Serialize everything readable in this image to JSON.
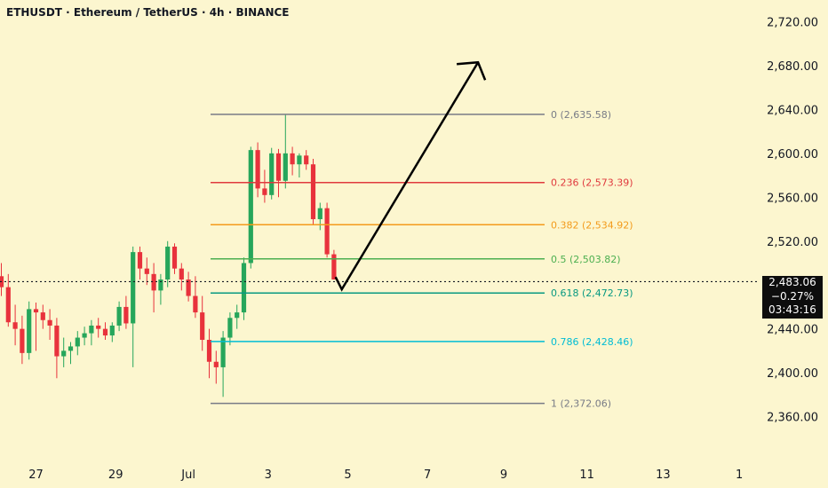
{
  "header": {
    "title": "ETHUSDT · Ethereum / TetherUS · 4h · BINANCE"
  },
  "price_badge": {
    "price": "2,483.06",
    "change": "−0.27%",
    "countdown": "03:43:16"
  },
  "colors": {
    "background": "#fcf6cf",
    "up": "#26a65b",
    "down": "#e8323c",
    "text": "#131722",
    "arrow": "#000000"
  },
  "chart_data": {
    "type": "candlestick",
    "title": "ETHUSDT · Ethereum / TetherUS · 4h · BINANCE",
    "ylim": [
      2350,
      2735
    ],
    "y_ticks": [
      "2,360.00",
      "2,400.00",
      "2,440.00",
      "2,480.00",
      "2,520.00",
      "2,560.00",
      "2,600.00",
      "2,640.00",
      "2,680.00",
      "2,720.00"
    ],
    "y_tick_values": [
      2360,
      2400,
      2440,
      2480,
      2520,
      2560,
      2600,
      2640,
      2680,
      2720
    ],
    "x_tick_labels": [
      "27",
      "29",
      "Jul",
      "3",
      "5",
      "7",
      "9",
      "11",
      "13",
      "1"
    ],
    "x_tick_indices": [
      5,
      16.5,
      27,
      38.5,
      50,
      61.5,
      72.5,
      84.5,
      95.5,
      106.5
    ],
    "last_price": 2483.06,
    "fibonacci": [
      {
        "label": "0 (2,635.58)",
        "value": 2635.58,
        "color": "#787b86"
      },
      {
        "label": "0.236 (2,573.39)",
        "value": 2573.39,
        "color": "#e03a3e"
      },
      {
        "label": "0.382 (2,534.92)",
        "value": 2534.92,
        "color": "#f39b1b"
      },
      {
        "label": "0.5 (2,503.82)",
        "value": 2503.82,
        "color": "#4caf50"
      },
      {
        "label": "0.618 (2,472.73)",
        "value": 2472.73,
        "color": "#089981"
      },
      {
        "label": "0.786 (2,428.46)",
        "value": 2428.46,
        "color": "#00bcd4"
      },
      {
        "label": "1 (2,372.06)",
        "value": 2372.06,
        "color": "#787b86"
      }
    ],
    "projection": [
      {
        "index": 49,
        "price": 2476
      },
      {
        "index": 67,
        "price": 2683
      }
    ],
    "candles": [
      [
        2488,
        2500,
        2470,
        2478
      ],
      [
        2478,
        2490,
        2442,
        2446
      ],
      [
        2446,
        2462,
        2425,
        2440
      ],
      [
        2440,
        2452,
        2408,
        2418
      ],
      [
        2418,
        2465,
        2412,
        2458
      ],
      [
        2458,
        2464,
        2420,
        2455
      ],
      [
        2455,
        2462,
        2440,
        2448
      ],
      [
        2448,
        2458,
        2430,
        2443
      ],
      [
        2443,
        2450,
        2395,
        2415
      ],
      [
        2415,
        2432,
        2405,
        2420
      ],
      [
        2420,
        2428,
        2408,
        2424
      ],
      [
        2424,
        2438,
        2416,
        2432
      ],
      [
        2432,
        2442,
        2425,
        2436
      ],
      [
        2436,
        2448,
        2425,
        2443
      ],
      [
        2443,
        2450,
        2432,
        2440
      ],
      [
        2440,
        2446,
        2430,
        2434
      ],
      [
        2434,
        2446,
        2428,
        2443
      ],
      [
        2443,
        2465,
        2438,
        2460
      ],
      [
        2460,
        2470,
        2440,
        2445
      ],
      [
        2445,
        2515,
        2405,
        2510
      ],
      [
        2510,
        2515,
        2485,
        2495
      ],
      [
        2495,
        2505,
        2480,
        2490
      ],
      [
        2490,
        2500,
        2455,
        2475
      ],
      [
        2475,
        2490,
        2462,
        2485
      ],
      [
        2485,
        2520,
        2478,
        2515
      ],
      [
        2515,
        2518,
        2490,
        2495
      ],
      [
        2495,
        2500,
        2475,
        2485
      ],
      [
        2485,
        2492,
        2465,
        2470
      ],
      [
        2470,
        2488,
        2450,
        2455
      ],
      [
        2455,
        2470,
        2420,
        2430
      ],
      [
        2430,
        2440,
        2395,
        2410
      ],
      [
        2410,
        2420,
        2390,
        2405
      ],
      [
        2405,
        2438,
        2378,
        2432
      ],
      [
        2432,
        2455,
        2425,
        2450
      ],
      [
        2450,
        2462,
        2440,
        2455
      ],
      [
        2455,
        2505,
        2448,
        2500
      ],
      [
        2500,
        2606,
        2495,
        2603
      ],
      [
        2603,
        2610,
        2560,
        2568
      ],
      [
        2568,
        2585,
        2555,
        2562
      ],
      [
        2562,
        2605,
        2558,
        2600
      ],
      [
        2600,
        2604,
        2560,
        2575
      ],
      [
        2575,
        2635,
        2568,
        2600
      ],
      [
        2600,
        2606,
        2580,
        2590
      ],
      [
        2590,
        2600,
        2578,
        2598
      ],
      [
        2598,
        2603,
        2585,
        2590
      ],
      [
        2590,
        2595,
        2535,
        2540
      ],
      [
        2540,
        2555,
        2530,
        2550
      ],
      [
        2550,
        2555,
        2505,
        2508
      ],
      [
        2508,
        2512,
        2485,
        2485
      ]
    ]
  }
}
